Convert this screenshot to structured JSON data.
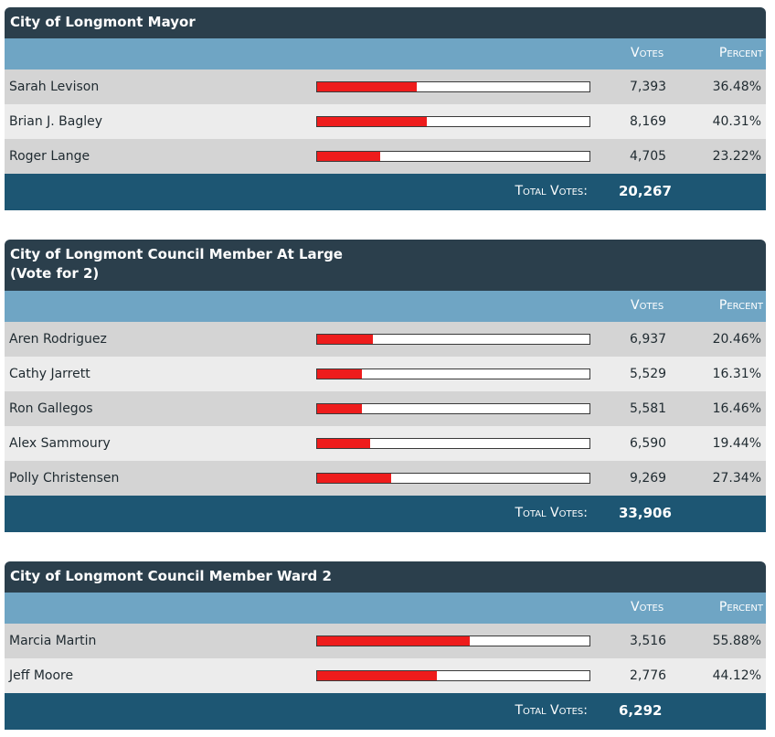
{
  "labels": {
    "votes": "Votes",
    "percent": "Percent",
    "total_votes": "Total Votes:"
  },
  "colors": {
    "title_bg": "#2b3f4c",
    "header_bg": "#6fa5c4",
    "total_bg": "#1d5673",
    "bar_fill": "#ee1c1c"
  },
  "races": [
    {
      "title": [
        "City of Longmont Mayor"
      ],
      "candidates": [
        {
          "name": "Sarah Levison",
          "votes": "7,393",
          "percent": "36.48%",
          "share": 0.3648
        },
        {
          "name": "Brian J. Bagley",
          "votes": "8,169",
          "percent": "40.31%",
          "share": 0.4031
        },
        {
          "name": "Roger Lange",
          "votes": "4,705",
          "percent": "23.22%",
          "share": 0.2322
        }
      ],
      "total": "20,267"
    },
    {
      "title": [
        "City of Longmont Council Member At Large",
        "(Vote for 2)"
      ],
      "candidates": [
        {
          "name": "Aren Rodriguez",
          "votes": "6,937",
          "percent": "20.46%",
          "share": 0.2046
        },
        {
          "name": "Cathy Jarrett",
          "votes": "5,529",
          "percent": "16.31%",
          "share": 0.1631
        },
        {
          "name": "Ron Gallegos",
          "votes": "5,581",
          "percent": "16.46%",
          "share": 0.1646
        },
        {
          "name": "Alex Sammoury",
          "votes": "6,590",
          "percent": "19.44%",
          "share": 0.1944
        },
        {
          "name": "Polly Christensen",
          "votes": "9,269",
          "percent": "27.34%",
          "share": 0.2734
        }
      ],
      "total": "33,906"
    },
    {
      "title": [
        "City of Longmont Council Member Ward 2"
      ],
      "candidates": [
        {
          "name": "Marcia Martin",
          "votes": "3,516",
          "percent": "55.88%",
          "share": 0.5588
        },
        {
          "name": "Jeff Moore",
          "votes": "2,776",
          "percent": "44.12%",
          "share": 0.4412
        }
      ],
      "total": "6,292"
    }
  ]
}
